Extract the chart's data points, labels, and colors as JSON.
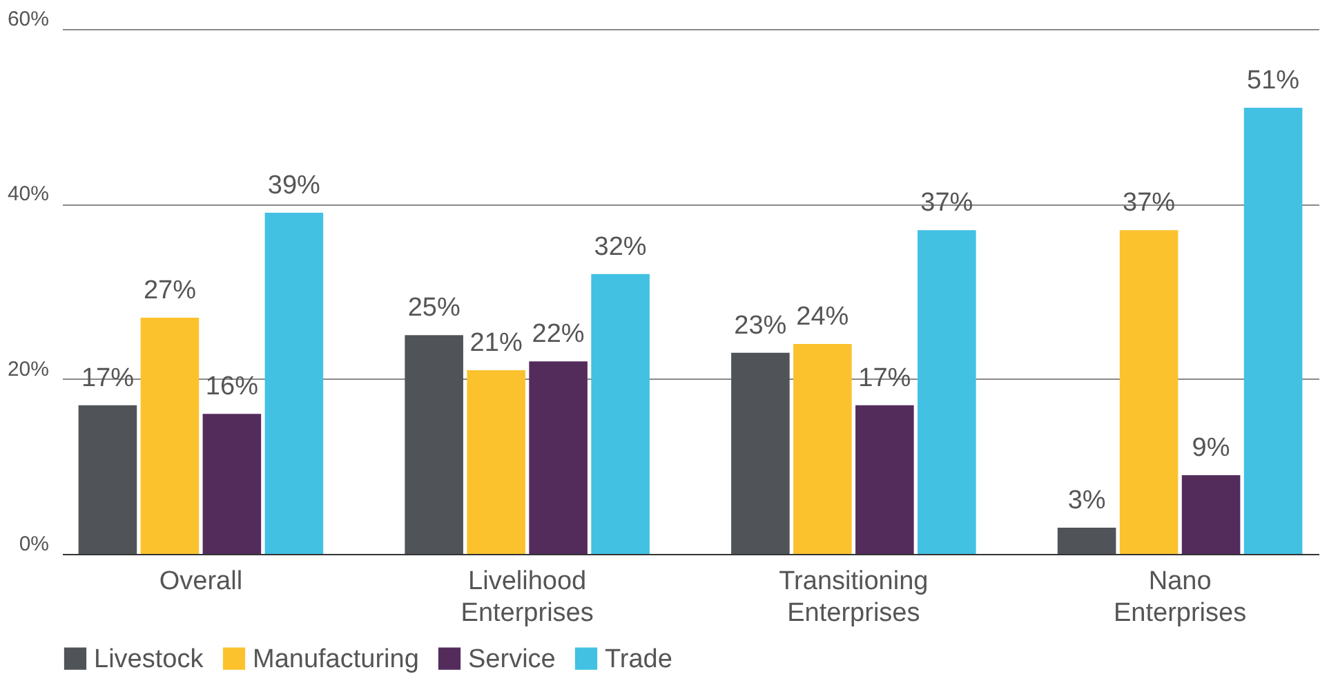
{
  "chart_data": {
    "type": "bar",
    "categories": [
      "Overall",
      "Livelihood Enterprises",
      "Transitioning Enterprises",
      "Nano Enterprises"
    ],
    "series": [
      {
        "name": "Livestock",
        "color": "#505458",
        "values": [
          17,
          25,
          23,
          3
        ],
        "value_labels": [
          "17%",
          "25%",
          "23%",
          "3%"
        ]
      },
      {
        "name": "Manufacturing",
        "color": "#fbc22d",
        "values": [
          27,
          21,
          24,
          37
        ],
        "value_labels": [
          "27%",
          "21%",
          "24%",
          "37%"
        ]
      },
      {
        "name": "Service",
        "color": "#532c5c",
        "values": [
          16,
          22,
          17,
          9
        ],
        "value_labels": [
          "16%",
          "22%",
          "17%",
          "9%"
        ]
      },
      {
        "name": "Trade",
        "color": "#42c1e3",
        "values": [
          39,
          32,
          37,
          51
        ],
        "value_labels": [
          "39%",
          "32%",
          "37%",
          "51%"
        ]
      }
    ],
    "ylim": [
      0,
      60
    ],
    "yticks": [
      {
        "value": 0,
        "label": "0%"
      },
      {
        "value": 20,
        "label": "20%"
      },
      {
        "value": 40,
        "label": "40%"
      },
      {
        "value": 60,
        "label": "60%"
      }
    ],
    "grid": "y",
    "legend": "bottom"
  }
}
